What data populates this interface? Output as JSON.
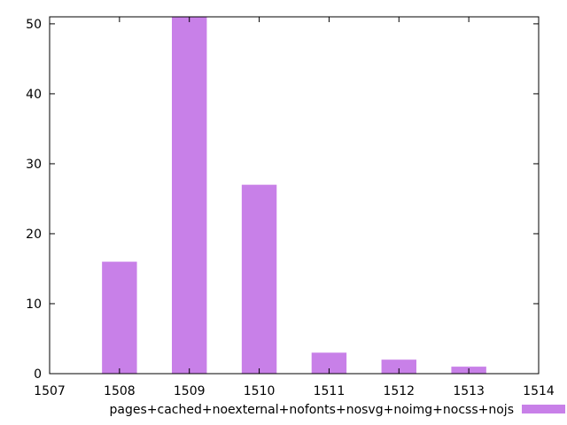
{
  "chart_data": {
    "type": "bar",
    "x": [
      1508,
      1509,
      1510,
      1511,
      1512,
      1513
    ],
    "values": [
      16,
      51,
      27,
      3,
      2,
      1
    ],
    "xlim": [
      1507,
      1514
    ],
    "ylim": [
      0,
      51
    ],
    "xticks": [
      "1507",
      "1508",
      "1509",
      "1510",
      "1511",
      "1512",
      "1513",
      "1514"
    ],
    "yticks": [
      "0",
      "10",
      "20",
      "30",
      "40",
      "50"
    ],
    "series": [
      {
        "name": "pages+cached+noexternal+nofonts+nosvg+noimg+nocss+nojs",
        "color": "#c880e8"
      }
    ],
    "legend": "bottom-right",
    "grid": false,
    "title": "",
    "xlabel": "",
    "ylabel": ""
  }
}
